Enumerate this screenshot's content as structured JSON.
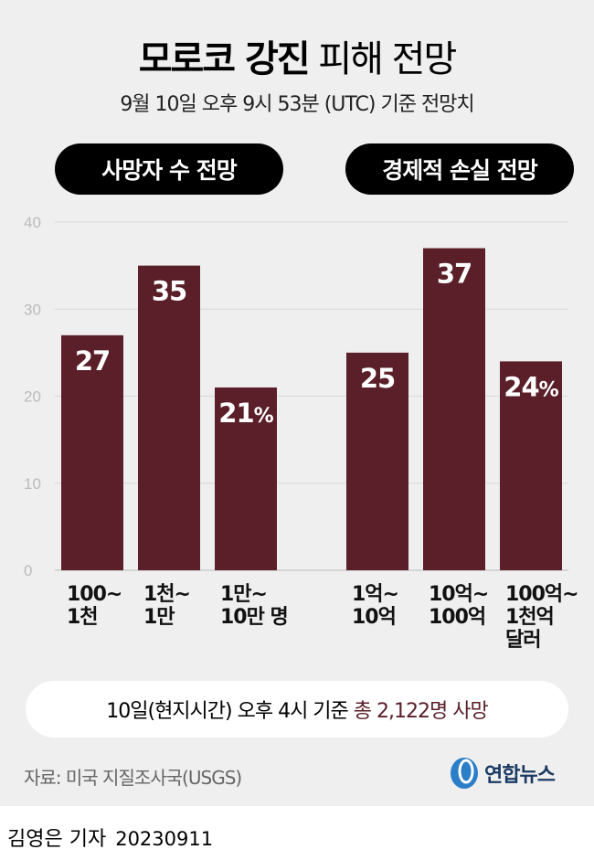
{
  "title_bold": "모로코 강진",
  "title_rest": "피해 전망",
  "subtitle": "9월 10일 오후 9시 53분 (UTC) 기준 전망치",
  "note": {
    "prefix": "10일(현지시간) 오후 4시 기준",
    "highlight": "총 2,122명 사망"
  },
  "source": "자료: 미국 지질조사국(USGS)",
  "logo": "연합뉴스",
  "byline": {
    "author": "김영은 기자",
    "date": "20230911"
  },
  "colors": {
    "bar": "#5a1f29",
    "grid": "#d8d8d8",
    "axis": "#bbbbbb"
  },
  "chart_data": {
    "type": "bar",
    "ylim": [
      0,
      40
    ],
    "yticks": [
      "0",
      "10",
      "20",
      "30",
      "40"
    ],
    "groups": [
      {
        "label": "사망자 수 전망",
        "categories": [
          [
            "100~",
            "1천"
          ],
          [
            "1천~",
            "1만"
          ],
          [
            "1만~",
            "10만 명"
          ]
        ],
        "values": [
          27,
          35,
          21
        ],
        "data_labels": [
          "27",
          "35",
          "21%"
        ]
      },
      {
        "label": "경제적 손실 전망",
        "categories": [
          [
            "1억~",
            "10억"
          ],
          [
            "10억~",
            "100억"
          ],
          [
            "100억~",
            "1천억",
            "달러"
          ]
        ],
        "values": [
          25,
          37,
          24
        ],
        "data_labels": [
          "25",
          "37",
          "24%"
        ]
      }
    ],
    "unit": "%"
  }
}
